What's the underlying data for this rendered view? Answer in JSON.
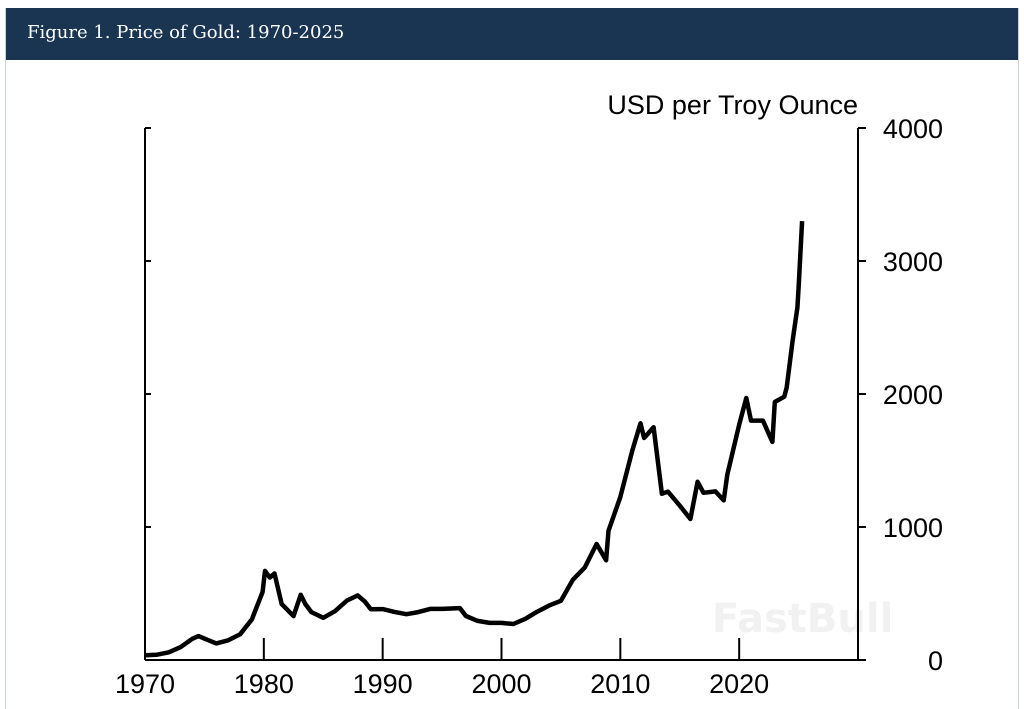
{
  "header": {
    "title": "Figure 1. Price of Gold: 1970-2025"
  },
  "watermark": "FastBull",
  "chart_data": {
    "type": "line",
    "title": "Figure 1. Price of Gold: 1970-2025",
    "ylabel": "USD per Troy Ounce",
    "xlabel": "",
    "xlim": [
      1970,
      2030
    ],
    "ylim": [
      0,
      4000
    ],
    "x_ticks": [
      "1970",
      "1980",
      "1990",
      "2000",
      "2010",
      "2020"
    ],
    "y_ticks": [
      "0",
      "1000",
      "2000",
      "3000",
      "4000"
    ],
    "y_axis_side": "right",
    "grid": false,
    "line_color": "#000000",
    "series": [
      {
        "x": [
          1970,
          1971,
          1972,
          1973,
          1974,
          1974.5,
          1975,
          1976,
          1977,
          1978,
          1979,
          1979.9,
          1980.1,
          1980.5,
          1980.9,
          1981.5,
          1982.5,
          1983.1,
          1983.5,
          1984,
          1985,
          1986,
          1987,
          1987.9,
          1988.5,
          1989,
          1990,
          1991,
          1992,
          1993,
          1994,
          1995,
          1996,
          1996.5,
          1997,
          1998,
          1999,
          2000,
          2001,
          2002,
          2003,
          2004,
          2005,
          2006,
          2007,
          2008,
          2008.8,
          2009,
          2010,
          2011,
          2011.7,
          2012,
          2012.8,
          2013.5,
          2014,
          2015,
          2015.9,
          2016.5,
          2017,
          2018,
          2018.7,
          2019,
          2020,
          2020.6,
          2021,
          2022,
          2022.8,
          2023,
          2023.8,
          2024,
          2024.5,
          2024.9,
          2025,
          2025.3
        ],
        "y": [
          35,
          40,
          58,
          97,
          160,
          180,
          161,
          125,
          148,
          193,
          306,
          512,
          670,
          620,
          650,
          420,
          330,
          490,
          420,
          360,
          317,
          368,
          447,
          486,
          440,
          381,
          383,
          362,
          344,
          360,
          384,
          384,
          388,
          390,
          331,
          294,
          279,
          279,
          271,
          310,
          363,
          409,
          445,
          603,
          695,
          872,
          750,
          972,
          1225,
          1572,
          1780,
          1669,
          1750,
          1250,
          1266,
          1160,
          1060,
          1340,
          1257,
          1268,
          1200,
          1393,
          1770,
          1970,
          1800,
          1800,
          1640,
          1940,
          1980,
          2050,
          2400,
          2650,
          2800,
          3300
        ]
      }
    ]
  }
}
